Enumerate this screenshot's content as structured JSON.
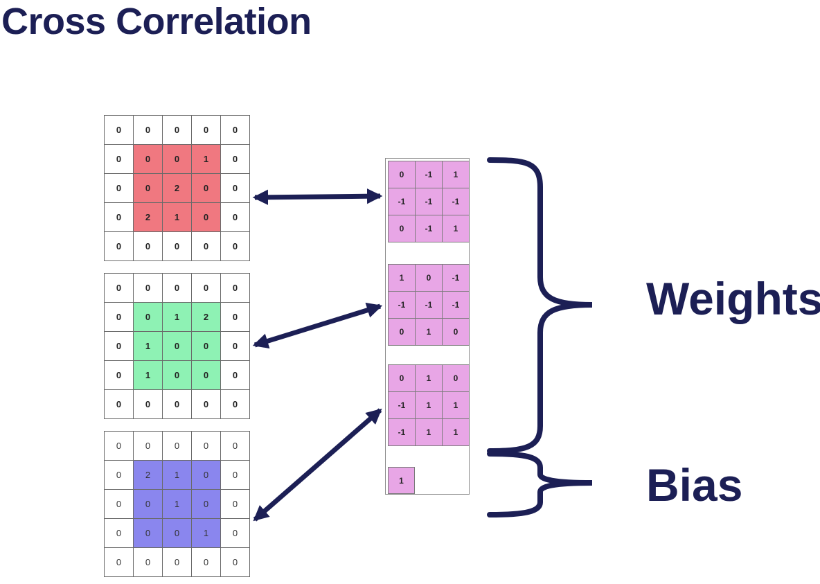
{
  "title": "Cross Correlation",
  "labels": {
    "weights": "Weights",
    "bias": "Bias"
  },
  "input_channels": [
    {
      "name": "red-channel",
      "highlight_color": "#f07880",
      "light_text": false,
      "values": [
        [
          "0",
          "0",
          "0",
          "0",
          "0"
        ],
        [
          "0",
          "0",
          "0",
          "1",
          "0"
        ],
        [
          "0",
          "0",
          "2",
          "0",
          "0"
        ],
        [
          "0",
          "2",
          "1",
          "0",
          "0"
        ],
        [
          "0",
          "0",
          "0",
          "0",
          "0"
        ]
      ]
    },
    {
      "name": "green-channel",
      "highlight_color": "#8ef2b4",
      "light_text": false,
      "values": [
        [
          "0",
          "0",
          "0",
          "0",
          "0"
        ],
        [
          "0",
          "0",
          "1",
          "2",
          "0"
        ],
        [
          "0",
          "1",
          "0",
          "0",
          "0"
        ],
        [
          "0",
          "1",
          "0",
          "0",
          "0"
        ],
        [
          "0",
          "0",
          "0",
          "0",
          "0"
        ]
      ]
    },
    {
      "name": "blue-channel",
      "highlight_color": "#8a86ee",
      "light_text": true,
      "values": [
        [
          "0",
          "0",
          "0",
          "0",
          "0"
        ],
        [
          "0",
          "2",
          "1",
          "0",
          "0"
        ],
        [
          "0",
          "0",
          "1",
          "0",
          "0"
        ],
        [
          "0",
          "0",
          "0",
          "1",
          "0"
        ],
        [
          "0",
          "0",
          "0",
          "0",
          "0"
        ]
      ]
    }
  ],
  "kernels": [
    [
      [
        "0",
        "-1",
        "1"
      ],
      [
        "-1",
        "-1",
        "-1"
      ],
      [
        "0",
        "-1",
        "1"
      ]
    ],
    [
      [
        "1",
        "0",
        "-1"
      ],
      [
        "-1",
        "-1",
        "-1"
      ],
      [
        "0",
        "1",
        "0"
      ]
    ],
    [
      [
        "0",
        "1",
        "0"
      ],
      [
        "-1",
        "1",
        "1"
      ],
      [
        "-1",
        "1",
        "1"
      ]
    ]
  ],
  "bias_value": "1",
  "colors": {
    "kernel_fill": "#e8a6e6",
    "arrow": "#1c1f55",
    "text_dark": "#1c1f55"
  }
}
